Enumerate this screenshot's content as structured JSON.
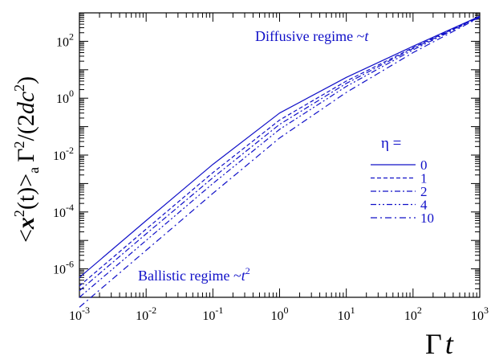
{
  "chart_data": {
    "type": "line",
    "scale": {
      "x": "log",
      "y": "log"
    },
    "xlim": [
      0.001,
      1000
    ],
    "ylim": [
      1e-07,
      1000
    ],
    "grid": false,
    "legend_placement": "center-right",
    "line_color": "#1010c8",
    "xlabel": {
      "main": "Γ",
      "italic": "t"
    },
    "ylabel": {
      "open": "<",
      "x": "x",
      "sup2": "2",
      "t": "(t)",
      "close": ">",
      "sub": "a",
      "gamma": "Γ",
      "sup2b": "2",
      "slash": "/(2",
      "dc": "dc",
      "sup2c": "2",
      "end": ")"
    },
    "x_ticks": [
      {
        "value": 0.001,
        "base": "10",
        "exp": "-3"
      },
      {
        "value": 0.01,
        "base": "10",
        "exp": "-2"
      },
      {
        "value": 0.1,
        "base": "10",
        "exp": "-1"
      },
      {
        "value": 1,
        "base": "10",
        "exp": "0"
      },
      {
        "value": 10,
        "base": "10",
        "exp": "1"
      },
      {
        "value": 100,
        "base": "10",
        "exp": "2"
      },
      {
        "value": 1000,
        "base": "10",
        "exp": "3"
      }
    ],
    "y_ticks": [
      {
        "value": 1e-06,
        "base": "10",
        "exp": "-6"
      },
      {
        "value": 0.0001,
        "base": "10",
        "exp": "-4"
      },
      {
        "value": 0.01,
        "base": "10",
        "exp": "-2"
      },
      {
        "value": 1,
        "base": "10",
        "exp": "0"
      },
      {
        "value": 100,
        "base": "10",
        "exp": "2"
      }
    ],
    "legend_title": "η =",
    "series": [
      {
        "name": "0",
        "dash": "",
        "x": [
          0.001,
          0.01,
          0.1,
          1,
          10,
          100,
          1000
        ],
        "y": [
          5e-07,
          5e-05,
          0.0047,
          0.3,
          5.4,
          67,
          760
        ]
      },
      {
        "name": "1",
        "dash": "5,3",
        "x": [
          0.001,
          0.01,
          0.1,
          1,
          10,
          100,
          1000
        ],
        "y": [
          2.5e-07,
          2.5e-05,
          0.0024,
          0.17,
          4.0,
          60,
          740
        ]
      },
      {
        "name": "2",
        "dash": "7,3,2,3",
        "x": [
          0.001,
          0.01,
          0.1,
          1,
          10,
          100,
          1000
        ],
        "y": [
          1.7e-07,
          1.7e-05,
          0.0016,
          0.12,
          3.3,
          56,
          730
        ]
      },
      {
        "name": "4",
        "dash": "7,3,2,3,2,3",
        "x": [
          0.001,
          0.01,
          0.1,
          1,
          10,
          100,
          1000
        ],
        "y": [
          1e-07,
          1e-05,
          0.001,
          0.08,
          2.6,
          50,
          715
        ]
      },
      {
        "name": "10",
        "dash": "8,4,2,4",
        "x": [
          0.001,
          0.01,
          0.1,
          1,
          10,
          100,
          1000
        ],
        "y": [
          4.5e-08,
          4.5e-06,
          0.00045,
          0.04,
          1.6,
          40,
          690
        ]
      }
    ],
    "annotations": {
      "diffusive": {
        "text": "Diffusive regime ~",
        "var": "t"
      },
      "ballistic": {
        "text": "Ballistic regime ~",
        "var": "t",
        "exp": "2"
      }
    }
  }
}
